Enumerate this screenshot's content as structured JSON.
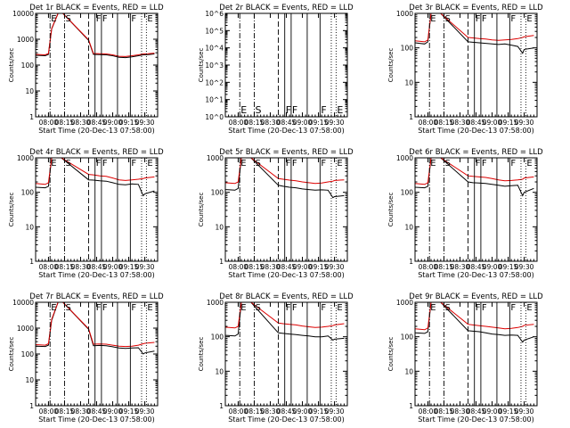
{
  "colors": {
    "events": "#000000",
    "lld": "#dd0000",
    "axis": "#000000",
    "background": "#ffffff"
  },
  "common": {
    "xlabel": "Start Time (20-Dec-13 07:58:00)",
    "ylabel": "Counts/sec",
    "x_ticks": [
      "08:00",
      "08:15",
      "08:30",
      "08:45",
      "09:00",
      "09:15",
      "09:30"
    ],
    "xlim_minutes": [
      -2,
      36
    ],
    "marker_lines": [
      {
        "t": 2.5,
        "style": "dashdot",
        "label": "E"
      },
      {
        "t": 7.0,
        "style": "dashdot",
        "label": "S"
      },
      {
        "t": 14.5,
        "style": "dashed",
        "label": ""
      },
      {
        "t": 16.5,
        "style": "solid",
        "label": "F"
      },
      {
        "t": 18.5,
        "style": "solid",
        "label": "F"
      },
      {
        "t": 23.5,
        "style": "solid",
        "label": ""
      },
      {
        "t": 27.5,
        "style": "solid",
        "label": "F"
      },
      {
        "t": 31.0,
        "style": "dotted",
        "label": ""
      },
      {
        "t": 32.5,
        "style": "dotted",
        "label": "E"
      }
    ]
  },
  "chart_data": [
    {
      "type": "line",
      "title": "Det 1r BLACK = Events, RED = LLD",
      "ylim_exp": [
        0,
        4
      ],
      "y_ticks": [
        "1",
        "10",
        "100",
        "1000",
        "10000"
      ],
      "xlabel": "Start Time (20-Dec-13 07:58:00)",
      "ylabel": "Counts/sec",
      "series": [
        {
          "name": "Events",
          "color": "#000000",
          "x": [
            -2,
            1,
            2,
            3,
            5,
            6,
            6.5,
            14.5,
            16,
            18,
            20,
            22,
            24,
            26,
            28,
            30,
            31.5,
            33,
            35
          ],
          "y": [
            240,
            230,
            260,
            2500,
            10000,
            10000,
            10000,
            900,
            260,
            255,
            250,
            230,
            200,
            195,
            210,
            230,
            250,
            255,
            270
          ]
        },
        {
          "name": "LLD",
          "color": "#dd0000",
          "x": [
            -2,
            1,
            2,
            3,
            5,
            6,
            6.5,
            14.5,
            16,
            18,
            20,
            22,
            24,
            26,
            28,
            30,
            31.5,
            33,
            35
          ],
          "y": [
            260,
            250,
            280,
            2600,
            10000,
            10000,
            10000,
            950,
            280,
            275,
            270,
            250,
            220,
            215,
            230,
            250,
            270,
            275,
            290
          ]
        }
      ]
    },
    {
      "type": "line",
      "title": "Det 2r BLACK = Events, RED = LLD",
      "ylim_exp": [
        0,
        6
      ],
      "y_ticks": [
        "10^0",
        "10^1",
        "10^2",
        "10^3",
        "10^4",
        "10^5",
        "10^6"
      ],
      "xlabel": "Start Time (20-Dec-13 07:58:00)",
      "ylabel": "Counts/sec",
      "series": []
    },
    {
      "type": "line",
      "title": "Det 3r BLACK = Events, RED = LLD",
      "ylim_exp": [
        0,
        3
      ],
      "y_ticks": [
        "1",
        "10",
        "100",
        "1000"
      ],
      "xlabel": "Start Time (20-Dec-13 07:58:00)",
      "ylabel": "Counts/sec",
      "series": [
        {
          "name": "Events",
          "color": "#000000",
          "x": [
            -2,
            1,
            2,
            3,
            5,
            6,
            14.5,
            16,
            18,
            20,
            22,
            24,
            26,
            28,
            30,
            31.5,
            32,
            35
          ],
          "y": [
            140,
            130,
            150,
            1000,
            1000,
            1000,
            150,
            145,
            140,
            135,
            130,
            125,
            130,
            120,
            110,
            70,
            90,
            100
          ]
        },
        {
          "name": "LLD",
          "color": "#dd0000",
          "x": [
            -2,
            1,
            2,
            3,
            5,
            6,
            14.5,
            16,
            18,
            20,
            22,
            24,
            26,
            28,
            30,
            31.5,
            32,
            35
          ],
          "y": [
            160,
            150,
            170,
            1000,
            1000,
            1000,
            200,
            195,
            185,
            180,
            170,
            165,
            170,
            175,
            185,
            200,
            210,
            230
          ]
        }
      ]
    },
    {
      "type": "line",
      "title": "Det 4r BLACK = Events, RED = LLD",
      "ylim_exp": [
        0,
        3
      ],
      "y_ticks": [
        "1",
        "10",
        "100",
        "1000"
      ],
      "xlabel": "Start Time (20-Dec-13 07:58:00)",
      "ylabel": "Counts/sec",
      "series": [
        {
          "name": "Events",
          "color": "#000000",
          "x": [
            -2,
            1,
            2,
            3,
            5,
            6,
            14.5,
            16,
            18,
            20,
            22,
            24,
            26,
            28,
            30,
            31.5,
            32,
            35
          ],
          "y": [
            140,
            135,
            150,
            1000,
            1000,
            1000,
            230,
            225,
            215,
            210,
            190,
            170,
            165,
            175,
            170,
            80,
            90,
            110
          ]
        },
        {
          "name": "LLD",
          "color": "#dd0000",
          "x": [
            -2,
            1,
            2,
            3,
            5,
            6,
            14.5,
            16,
            18,
            20,
            22,
            24,
            26,
            28,
            30,
            31.5,
            32,
            35
          ],
          "y": [
            180,
            170,
            190,
            1000,
            1000,
            1000,
            330,
            320,
            300,
            290,
            260,
            230,
            220,
            230,
            240,
            250,
            260,
            280
          ]
        }
      ]
    },
    {
      "type": "line",
      "title": "Det 5r BLACK = Events, RED = LLD",
      "ylim_exp": [
        0,
        3
      ],
      "y_ticks": [
        "1",
        "10",
        "100",
        "1000"
      ],
      "xlabel": "Start Time (20-Dec-13 07:58:00)",
      "ylabel": "Counts/sec",
      "series": [
        {
          "name": "Events",
          "color": "#000000",
          "x": [
            -2,
            1,
            2,
            3,
            5,
            6,
            14.5,
            16,
            18,
            20,
            22,
            24,
            26,
            28,
            30,
            31.5,
            32,
            35
          ],
          "y": [
            120,
            115,
            130,
            1000,
            1000,
            1000,
            160,
            150,
            140,
            135,
            125,
            120,
            115,
            118,
            115,
            70,
            75,
            80
          ]
        },
        {
          "name": "LLD",
          "color": "#dd0000",
          "x": [
            -2,
            1,
            2,
            3,
            5,
            6,
            14.5,
            16,
            18,
            20,
            22,
            24,
            26,
            28,
            30,
            31.5,
            32,
            35
          ],
          "y": [
            190,
            180,
            200,
            1000,
            1000,
            1000,
            250,
            240,
            225,
            215,
            200,
            190,
            180,
            185,
            200,
            210,
            220,
            230
          ]
        }
      ]
    },
    {
      "type": "line",
      "title": "Det 6r BLACK = Events, RED = LLD",
      "ylim_exp": [
        0,
        3
      ],
      "y_ticks": [
        "1",
        "10",
        "100",
        "1000"
      ],
      "xlabel": "Start Time (20-Dec-13 07:58:00)",
      "ylabel": "Counts/sec",
      "series": [
        {
          "name": "Events",
          "color": "#000000",
          "x": [
            -2,
            1,
            2,
            3,
            5,
            6,
            14.5,
            16,
            18,
            20,
            22,
            24,
            26,
            28,
            30,
            31.5,
            32,
            35
          ],
          "y": [
            140,
            135,
            150,
            1000,
            1000,
            1000,
            200,
            190,
            185,
            180,
            170,
            160,
            150,
            155,
            160,
            80,
            100,
            130
          ]
        },
        {
          "name": "LLD",
          "color": "#dd0000",
          "x": [
            -2,
            1,
            2,
            3,
            5,
            6,
            14.5,
            16,
            18,
            20,
            22,
            24,
            26,
            28,
            30,
            31.5,
            32,
            35
          ],
          "y": [
            180,
            170,
            190,
            1000,
            1000,
            1000,
            300,
            290,
            280,
            270,
            250,
            230,
            215,
            220,
            230,
            240,
            260,
            280
          ]
        }
      ]
    },
    {
      "type": "line",
      "title": "Det 7r BLACK = Events, RED = LLD",
      "ylim_exp": [
        0,
        4
      ],
      "y_ticks": [
        "1",
        "10",
        "100",
        "1000",
        "10000"
      ],
      "xlabel": "Start Time (20-Dec-13 07:58:00)",
      "ylabel": "Counts/sec",
      "series": [
        {
          "name": "Events",
          "color": "#000000",
          "x": [
            -2,
            1,
            2,
            3,
            5,
            6,
            6.5,
            14.5,
            16,
            18,
            20,
            22,
            24,
            26,
            28,
            30,
            31.5,
            32,
            35
          ],
          "y": [
            200,
            195,
            220,
            2000,
            10000,
            10000,
            10000,
            900,
            210,
            215,
            210,
            190,
            170,
            165,
            170,
            175,
            100,
            110,
            130
          ]
        },
        {
          "name": "LLD",
          "color": "#dd0000",
          "x": [
            -2,
            1,
            2,
            3,
            5,
            6,
            6.5,
            14.5,
            16,
            18,
            20,
            22,
            24,
            26,
            28,
            30,
            31.5,
            32,
            35
          ],
          "y": [
            230,
            220,
            250,
            2200,
            10000,
            10000,
            10000,
            950,
            240,
            245,
            240,
            220,
            200,
            195,
            200,
            220,
            250,
            260,
            280
          ]
        }
      ]
    },
    {
      "type": "line",
      "title": "Det 8r BLACK = Events, RED = LLD",
      "ylim_exp": [
        0,
        3
      ],
      "y_ticks": [
        "1",
        "10",
        "100",
        "1000"
      ],
      "xlabel": "Start Time (20-Dec-13 07:58:00)",
      "ylabel": "Counts/sec",
      "series": [
        {
          "name": "Events",
          "color": "#000000",
          "x": [
            -2,
            1,
            2,
            3,
            5,
            6,
            14.5,
            16,
            18,
            20,
            22,
            24,
            26,
            28,
            30,
            31.5,
            32,
            35
          ],
          "y": [
            110,
            105,
            120,
            1000,
            1000,
            1000,
            130,
            125,
            120,
            115,
            110,
            105,
            100,
            100,
            105,
            80,
            85,
            90
          ]
        },
        {
          "name": "LLD",
          "color": "#dd0000",
          "x": [
            -2,
            1,
            2,
            3,
            5,
            6,
            14.5,
            16,
            18,
            20,
            22,
            24,
            26,
            28,
            30,
            31.5,
            32,
            35
          ],
          "y": [
            190,
            180,
            200,
            1000,
            1000,
            1000,
            250,
            240,
            230,
            220,
            205,
            195,
            185,
            190,
            200,
            210,
            220,
            240
          ]
        }
      ]
    },
    {
      "type": "line",
      "title": "Det 9r BLACK = Events, RED = LLD",
      "ylim_exp": [
        0,
        3
      ],
      "y_ticks": [
        "1",
        "10",
        "100",
        "1000"
      ],
      "xlabel": "Start Time (20-Dec-13 07:58:00)",
      "ylabel": "Counts/sec",
      "series": [
        {
          "name": "Events",
          "color": "#000000",
          "x": [
            -2,
            1,
            2,
            3,
            5,
            6,
            14.5,
            16,
            18,
            20,
            22,
            24,
            26,
            28,
            30,
            31.5,
            32,
            35
          ],
          "y": [
            130,
            125,
            140,
            1000,
            1000,
            1000,
            150,
            145,
            140,
            130,
            120,
            115,
            110,
            112,
            110,
            70,
            80,
            100
          ]
        },
        {
          "name": "LLD",
          "color": "#dd0000",
          "x": [
            -2,
            1,
            2,
            3,
            5,
            6,
            14.5,
            16,
            18,
            20,
            22,
            24,
            26,
            28,
            30,
            31.5,
            32,
            35
          ],
          "y": [
            170,
            160,
            180,
            1000,
            1000,
            1000,
            230,
            220,
            210,
            200,
            190,
            180,
            170,
            175,
            185,
            200,
            215,
            230
          ]
        }
      ]
    }
  ]
}
